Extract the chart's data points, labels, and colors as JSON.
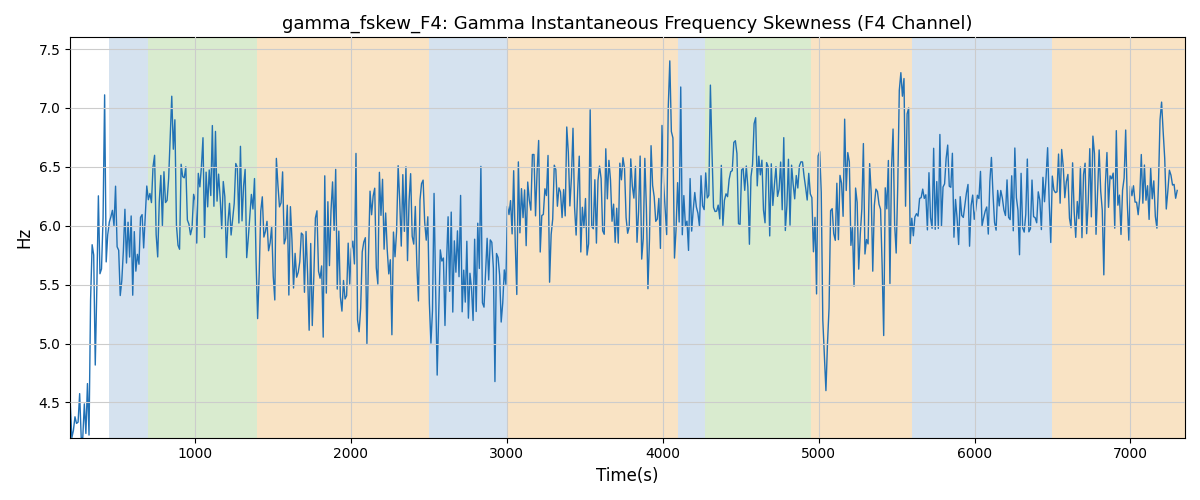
{
  "title": "gamma_fskew_F4: Gamma Instantaneous Frequency Skewness (F4 Channel)",
  "xlabel": "Time(s)",
  "ylabel": "Hz",
  "ylim": [
    4.2,
    7.6
  ],
  "xlim": [
    200,
    7350
  ],
  "line_color": "#2171b5",
  "line_width": 1.0,
  "bg_bands": [
    {
      "xmin": 450,
      "xmax": 700,
      "color": "#adc6e0",
      "alpha": 0.5
    },
    {
      "xmin": 700,
      "xmax": 1400,
      "color": "#b5d9a0",
      "alpha": 0.5
    },
    {
      "xmin": 1400,
      "xmax": 2500,
      "color": "#f5c98a",
      "alpha": 0.5
    },
    {
      "xmin": 2500,
      "xmax": 3000,
      "color": "#adc6e0",
      "alpha": 0.5
    },
    {
      "xmin": 3000,
      "xmax": 4100,
      "color": "#f5c98a",
      "alpha": 0.5
    },
    {
      "xmin": 4100,
      "xmax": 4270,
      "color": "#adc6e0",
      "alpha": 0.5
    },
    {
      "xmin": 4270,
      "xmax": 4950,
      "color": "#b5d9a0",
      "alpha": 0.5
    },
    {
      "xmin": 4950,
      "xmax": 5600,
      "color": "#f5c98a",
      "alpha": 0.5
    },
    {
      "xmin": 5600,
      "xmax": 6500,
      "color": "#adc6e0",
      "alpha": 0.5
    },
    {
      "xmin": 6500,
      "xmax": 7350,
      "color": "#f5c98a",
      "alpha": 0.5
    }
  ],
  "grid_color": "#cccccc",
  "title_fontsize": 13,
  "tick_fontsize": 10,
  "label_fontsize": 12,
  "seed": 12345,
  "t_start": 200,
  "t_end": 7300
}
